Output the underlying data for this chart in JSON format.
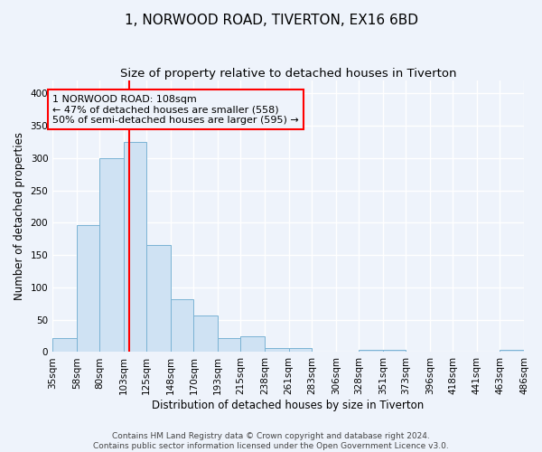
{
  "title1": "1, NORWOOD ROAD, TIVERTON, EX16 6BD",
  "title2": "Size of property relative to detached houses in Tiverton",
  "xlabel": "Distribution of detached houses by size in Tiverton",
  "ylabel": "Number of detached properties",
  "bin_edges": [
    35,
    58,
    80,
    103,
    125,
    148,
    170,
    193,
    215,
    238,
    261,
    283,
    306,
    328,
    351,
    373,
    396,
    418,
    441,
    463,
    486
  ],
  "bar_heights": [
    22,
    197,
    300,
    325,
    165,
    82,
    57,
    22,
    25,
    6,
    6,
    0,
    0,
    4,
    4,
    0,
    0,
    0,
    0,
    3
  ],
  "bar_facecolor": "#cfe2f3",
  "bar_edgecolor": "#7ab3d4",
  "vline_x": 108,
  "vline_color": "red",
  "annotation_text": "1 NORWOOD ROAD: 108sqm\n← 47% of detached houses are smaller (558)\n50% of semi-detached houses are larger (595) →",
  "ylim": [
    0,
    420
  ],
  "background_color": "#eef3fb",
  "grid_color": "white",
  "footer_text": "Contains HM Land Registry data © Crown copyright and database right 2024.\nContains public sector information licensed under the Open Government Licence v3.0.",
  "tick_labels": [
    "35sqm",
    "58sqm",
    "80sqm",
    "103sqm",
    "125sqm",
    "148sqm",
    "170sqm",
    "193sqm",
    "215sqm",
    "238sqm",
    "261sqm",
    "283sqm",
    "306sqm",
    "328sqm",
    "351sqm",
    "373sqm",
    "396sqm",
    "418sqm",
    "441sqm",
    "463sqm",
    "486sqm"
  ],
  "title1_fontsize": 11,
  "title2_fontsize": 9.5,
  "annotation_fontsize": 8,
  "axis_label_fontsize": 8.5,
  "tick_fontsize": 7.5,
  "footer_fontsize": 6.5
}
